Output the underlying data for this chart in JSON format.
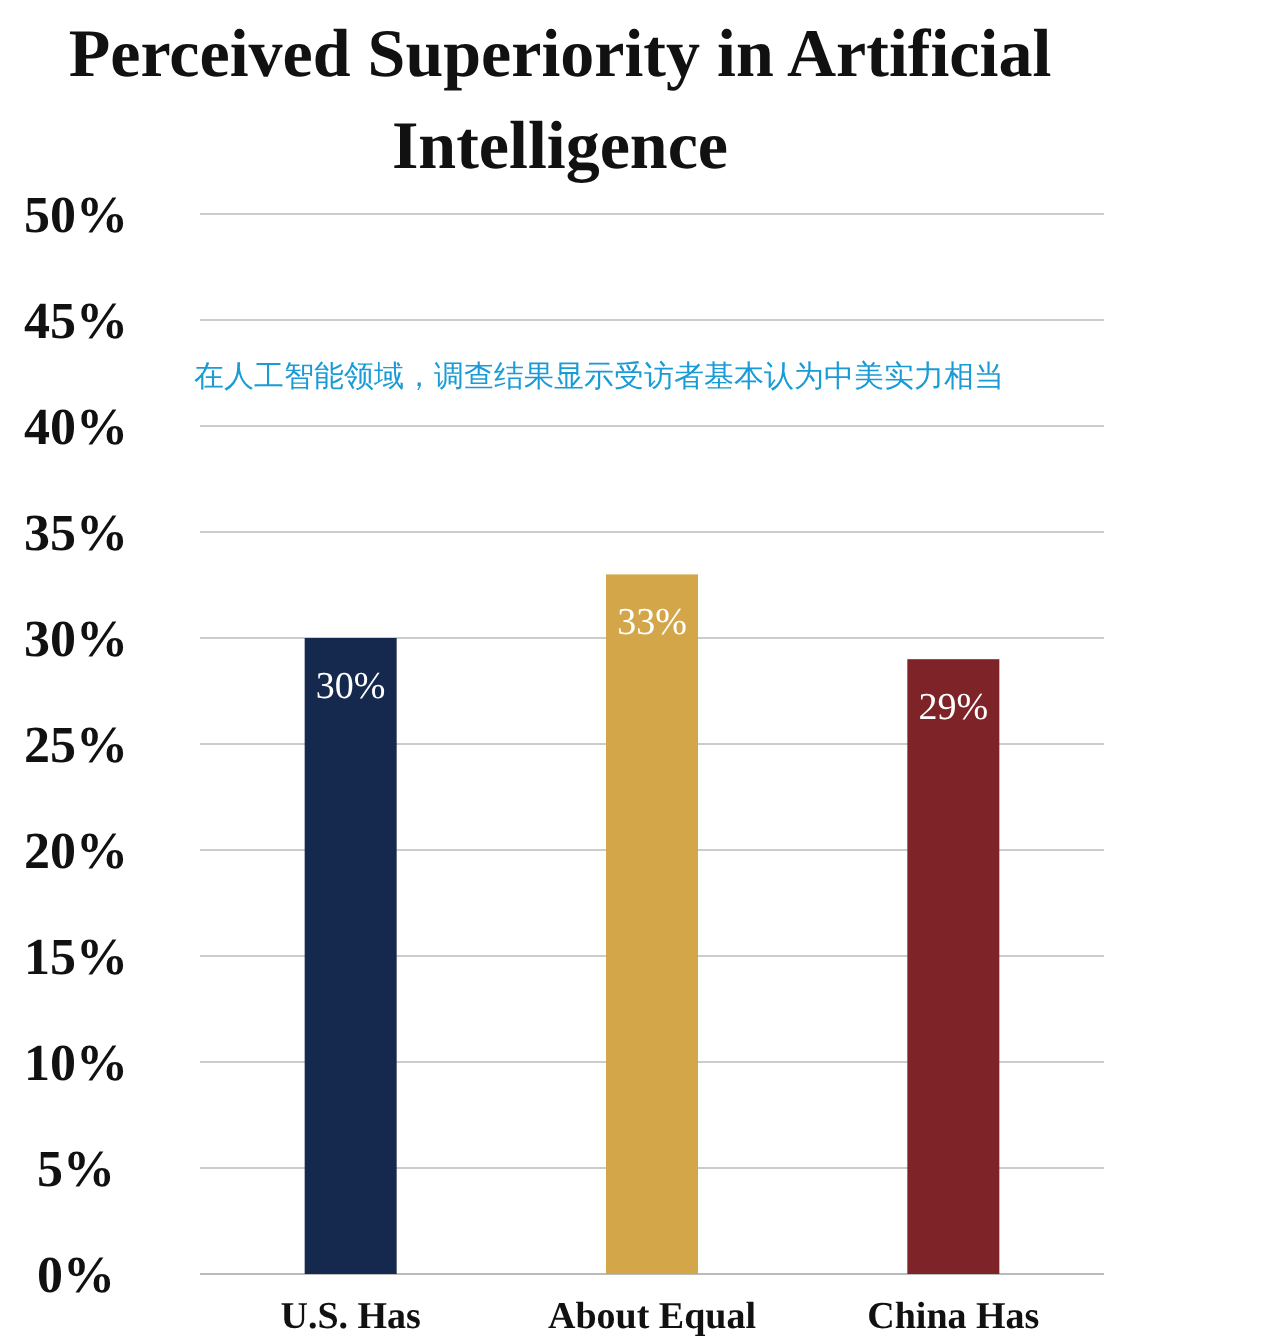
{
  "chart_data": {
    "type": "bar",
    "title": "Perceived Superiority in Artificial Intelligence",
    "categories": [
      "U.S. Has",
      "About Equal",
      "China Has"
    ],
    "values": [
      30,
      33,
      29
    ],
    "colors": [
      "#15294e",
      "#d3a64a",
      "#7e2327"
    ],
    "value_labels": [
      "30%",
      "33%",
      "29%"
    ],
    "ylim": [
      0,
      50
    ],
    "yticks": [
      {
        "value": 0,
        "label": "0%"
      },
      {
        "value": 5,
        "label": "5%"
      },
      {
        "value": 10,
        "label": "10%"
      },
      {
        "value": 15,
        "label": "15%"
      },
      {
        "value": 20,
        "label": "20%"
      },
      {
        "value": 25,
        "label": "25%"
      },
      {
        "value": 30,
        "label": "30%"
      },
      {
        "value": 35,
        "label": "35%"
      },
      {
        "value": 40,
        "label": "40%"
      },
      {
        "value": 45,
        "label": "45%"
      },
      {
        "value": 50,
        "label": "50%"
      }
    ],
    "grid": "y",
    "annotations": [
      "在人工智能领域，调查结果显示受访者基本认为中美实力相当"
    ]
  }
}
